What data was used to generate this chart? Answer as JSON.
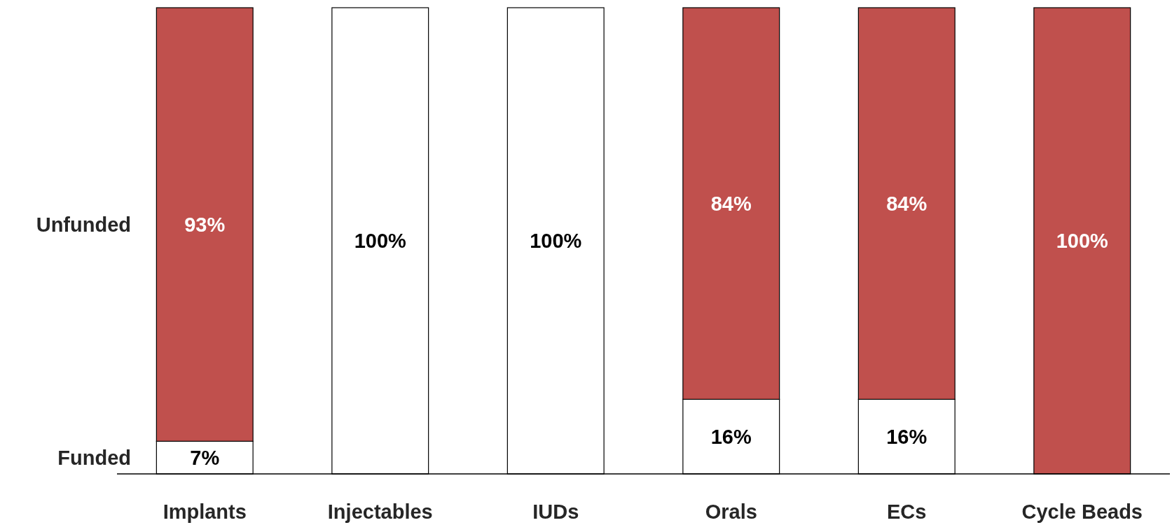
{
  "chart_data": {
    "type": "bar",
    "stacked": true,
    "legend": false,
    "categories": [
      "Implants",
      "Injectables",
      "IUDs",
      "Orals",
      "ECs",
      "Cycle Beads"
    ],
    "series": [
      {
        "name": "Funded",
        "color": "#ffffff",
        "values": [
          7,
          100,
          100,
          16,
          16,
          0
        ],
        "value_labels": [
          "7%",
          "100%",
          "100%",
          "16%",
          "16%",
          null
        ]
      },
      {
        "name": "Unfunded",
        "color": "#c0504d",
        "values": [
          93,
          0,
          0,
          84,
          84,
          100
        ],
        "value_labels": [
          "93%",
          null,
          null,
          "84%",
          "84%",
          "100%"
        ]
      }
    ]
  }
}
